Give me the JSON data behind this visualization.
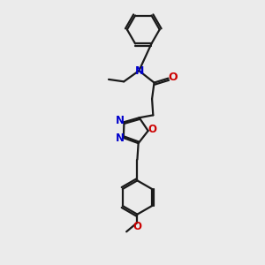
{
  "bg_color": "#ebebeb",
  "bond_color": "#1a1a1a",
  "N_color": "#0000cc",
  "O_color": "#cc0000",
  "line_width": 1.6,
  "figsize": [
    3.0,
    3.0
  ],
  "dpi": 100,
  "xlim": [
    0,
    10
  ],
  "ylim": [
    0,
    12
  ]
}
